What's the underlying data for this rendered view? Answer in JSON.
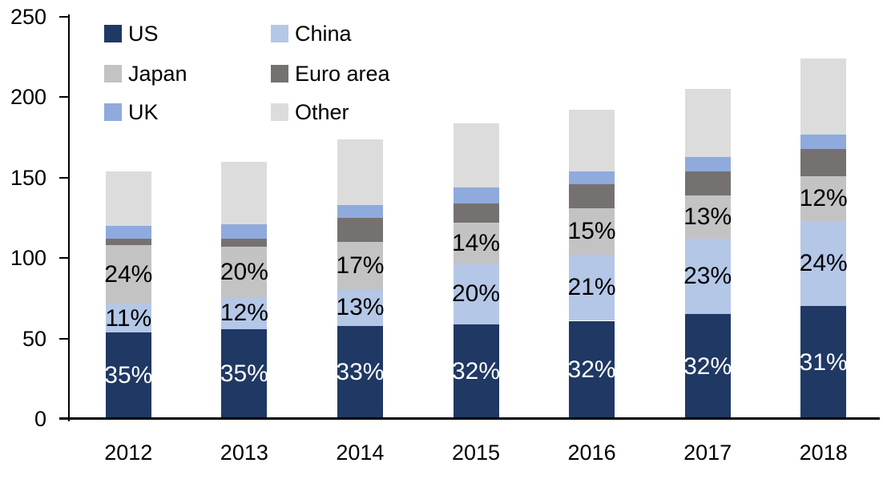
{
  "chart_data": {
    "type": "bar",
    "stacked": true,
    "title": "",
    "xlabel": "",
    "ylabel": "",
    "categories": [
      "2012",
      "2013",
      "2014",
      "2015",
      "2016",
      "2017",
      "2018"
    ],
    "series": [
      {
        "name": "US",
        "color": "#1F3864",
        "values": [
          54,
          56,
          58,
          59,
          61,
          65,
          70
        ]
      },
      {
        "name": "China",
        "color": "#B4C7E7",
        "values": [
          17,
          19,
          22,
          37,
          41,
          47,
          53
        ]
      },
      {
        "name": "Japan",
        "color": "#C3C3C3",
        "values": [
          37,
          32,
          30,
          26,
          29,
          27,
          28
        ]
      },
      {
        "name": "Euro area",
        "color": "#767171",
        "values": [
          4,
          5,
          15,
          12,
          15,
          15,
          17
        ]
      },
      {
        "name": "UK",
        "color": "#8FAADC",
        "values": [
          8,
          9,
          8,
          10,
          8,
          9,
          9
        ]
      },
      {
        "name": "Other",
        "color": "#DCDCDC",
        "values": [
          34,
          39,
          41,
          40,
          38,
          42,
          47
        ]
      }
    ],
    "totals": [
      154,
      160,
      174,
      184,
      192,
      205,
      224
    ],
    "segment_labels": {
      "US": [
        "35%",
        "35%",
        "33%",
        "32%",
        "32%",
        "32%",
        "31%"
      ],
      "China": [
        "11%",
        "12%",
        "13%",
        "20%",
        "21%",
        "23%",
        "24%"
      ],
      "Japan": [
        "24%",
        "20%",
        "17%",
        "14%",
        "15%",
        "13%",
        "12%"
      ]
    },
    "label_colors": {
      "US": "#FFFFFF",
      "China": "#000000",
      "Japan": "#000000"
    },
    "ylim": [
      0,
      250
    ],
    "yticks": [
      0,
      50,
      100,
      150,
      200,
      250
    ],
    "ytick_labels": [
      "0",
      "50",
      "100",
      "150",
      "200",
      "250"
    ],
    "grid": false,
    "legend_position": "top-left",
    "legend_columns": 2,
    "legend_order": [
      "US",
      "China",
      "Japan",
      "Euro area",
      "UK",
      "Other"
    ]
  },
  "axis_color": "#000000",
  "background_color": "#FFFFFF"
}
